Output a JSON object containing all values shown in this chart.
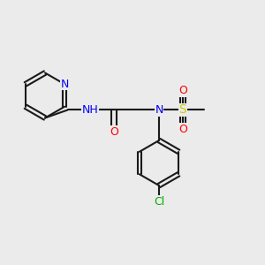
{
  "bg_color": "#ebebeb",
  "bond_color": "#1a1a1a",
  "bond_width": 1.5,
  "atom_colors": {
    "N": "#0000ff",
    "O": "#ff0000",
    "S": "#cccc00",
    "Cl": "#00aa00",
    "C": "#1a1a1a",
    "H": "#5a5a5a"
  },
  "font_size_atom": 9,
  "font_size_label": 8
}
